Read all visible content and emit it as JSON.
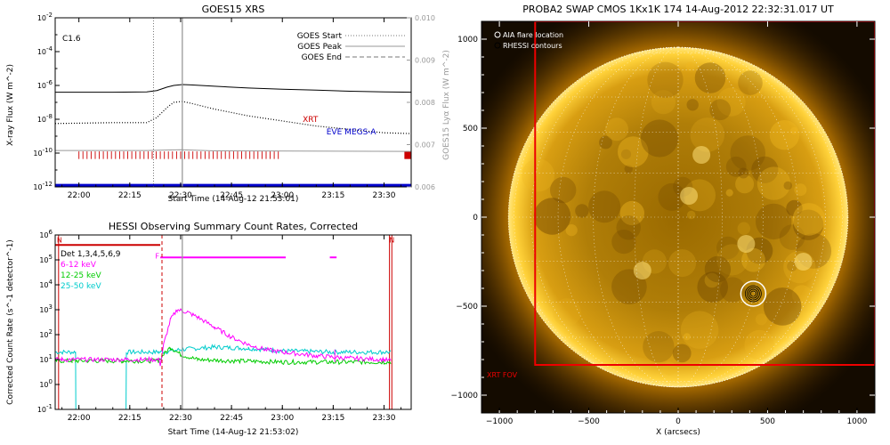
{
  "chart_data": [
    {
      "type": "line",
      "title": "GOES15 XRS",
      "xlabel": "Start Time (14-Aug-12 21:53:01)",
      "ylabel": "X-ray Flux (W m^-2)",
      "ylabel_right": "GOES15 Lyα Flux (W m^-2)",
      "flare_class": "C1.6",
      "x_range_min": [
        -7,
        98
      ],
      "y_range_log": [
        -12,
        -2
      ],
      "y_right_range": [
        0.006,
        0.01
      ],
      "x_ticks": [
        {
          "label": "22:00",
          "min": 0
        },
        {
          "label": "22:15",
          "min": 15
        },
        {
          "label": "22:30",
          "min": 30
        },
        {
          "label": "22:45",
          "min": 45
        },
        {
          "label": "23:00",
          "min": 60
        },
        {
          "label": "23:15",
          "min": 75
        },
        {
          "label": "23:30",
          "min": 90
        }
      ],
      "y_ticks": [
        -2,
        -4,
        -6,
        -8,
        -10,
        -12
      ],
      "y_right_ticks": [
        {
          "label": "0.010",
          "v": 0.01
        },
        {
          "label": "0.009",
          "v": 0.009
        },
        {
          "label": "0.008",
          "v": 0.008
        },
        {
          "label": "0.007",
          "v": 0.007
        },
        {
          "label": "0.006",
          "v": 0.006
        }
      ],
      "legend": [
        {
          "name": "GOES Start",
          "style": "dotted"
        },
        {
          "name": "GOES Peak",
          "style": "solid"
        },
        {
          "name": "GOES End",
          "style": "dashed"
        }
      ],
      "labels": [
        {
          "name": "XRT",
          "color": "#cc0000",
          "x_min": 66,
          "log_y": -8.15
        },
        {
          "name": "EVE MEGS-A",
          "color": "#0000cc",
          "x_min": 73,
          "log_y": -8.9
        }
      ],
      "markers": {
        "goes_start_min": 22,
        "goes_peak_min": 30.5
      },
      "series": [
        {
          "name": "long channel",
          "color": "#000000",
          "style": "solid",
          "x": [
            -7,
            10,
            20,
            23,
            26,
            28,
            30.5,
            33,
            40,
            50,
            60,
            70,
            80,
            90,
            98
          ],
          "log_y": [
            -6.4,
            -6.4,
            -6.38,
            -6.3,
            -6.1,
            -6.0,
            -5.95,
            -5.97,
            -6.05,
            -6.15,
            -6.22,
            -6.28,
            -6.34,
            -6.38,
            -6.4
          ]
        },
        {
          "name": "short channel",
          "color": "#000000",
          "style": "dotted",
          "x": [
            -7,
            10,
            20,
            23,
            26,
            28,
            30.5,
            33,
            40,
            50,
            60,
            70,
            80,
            90,
            98
          ],
          "log_y": [
            -8.25,
            -8.2,
            -8.2,
            -7.9,
            -7.3,
            -7.0,
            -6.95,
            -7.05,
            -7.4,
            -7.8,
            -8.1,
            -8.4,
            -8.6,
            -8.8,
            -8.85
          ]
        },
        {
          "name": "Lyα",
          "color": "#999999",
          "style": "solid",
          "x": [
            -7,
            20,
            30,
            40,
            98
          ],
          "log_y": [
            -9.85,
            -9.85,
            -9.8,
            -9.87,
            -9.9
          ]
        },
        {
          "name": "EVE MEGS-A",
          "color": "#0000cc",
          "style": "thick",
          "x": [
            -7,
            98
          ],
          "log_y": [
            -11.9,
            -11.9
          ]
        }
      ]
    },
    {
      "type": "line",
      "title": "HESSI Observing Summary Count Rates, Corrected",
      "xlabel": "Start Time (14-Aug-12 21:53:02)",
      "ylabel": "Corrected Count Rate (s^-1 detector^-1)",
      "detectors_label": "Det 1,3,4,5,6,9",
      "x_range_min": [
        -7,
        98
      ],
      "y_range_log": [
        -1,
        6
      ],
      "x_ticks": [
        {
          "label": "22:00",
          "min": 0
        },
        {
          "label": "22:15",
          "min": 15
        },
        {
          "label": "22:30",
          "min": 30
        },
        {
          "label": "22:45",
          "min": 45
        },
        {
          "label": "23:00",
          "min": 60
        },
        {
          "label": "23:15",
          "min": 75
        },
        {
          "label": "23:30",
          "min": 90
        }
      ],
      "y_ticks": [
        {
          "label": "10^-1",
          "v": -1
        },
        {
          "label": "10^0",
          "v": 0
        },
        {
          "label": "10^1",
          "v": 1
        },
        {
          "label": "10^2",
          "v": 2
        },
        {
          "label": "10^3",
          "v": 3
        },
        {
          "label": "10^4",
          "v": 4
        },
        {
          "label": "10^5",
          "v": 5
        },
        {
          "label": "10^6",
          "v": 6
        }
      ],
      "flags": [
        {
          "label": "N",
          "color": "#cc0000",
          "x_min": -6.5,
          "log_y": 5.7
        },
        {
          "label": "F",
          "color": "#ff00ff",
          "x_min": 22.5,
          "log_y": 5.05
        },
        {
          "label": "N",
          "color": "#cc0000",
          "x_min": 91.5,
          "log_y": 5.7
        }
      ],
      "flag_bars": [
        {
          "color": "#cc0000",
          "x": [
            -7,
            24
          ],
          "log_y": 5.6
        },
        {
          "color": "#ff00ff",
          "x": [
            24,
            61
          ],
          "log_y": 5.1
        },
        {
          "color": "#ff00ff",
          "x": [
            74,
            76
          ],
          "log_y": 5.1
        }
      ],
      "markers": {
        "goes_start_min": 24.5,
        "goes_peak_min": 30.5
      },
      "legend": [
        {
          "name": "6-12 keV",
          "color": "#ff00ff"
        },
        {
          "name": "12-25 keV",
          "color": "#00cc00"
        },
        {
          "name": "25-50 keV",
          "color": "#00cccc"
        }
      ],
      "series": [
        {
          "name": "6-12 keV",
          "color": "#ff00ff",
          "x": [
            -7,
            -5,
            -2,
            -1,
            13,
            14,
            23.5,
            24,
            25,
            27,
            29,
            32,
            35,
            40,
            45,
            50,
            55,
            60,
            70,
            80,
            90,
            92
          ],
          "log_y": [
            1.0,
            1.0,
            1.0,
            1.0,
            1.0,
            1.0,
            1.0,
            0.8,
            1.6,
            2.6,
            3.0,
            2.9,
            2.7,
            2.3,
            1.9,
            1.6,
            1.4,
            1.3,
            1.15,
            1.05,
            1.0,
            0.95
          ]
        },
        {
          "name": "12-25 keV",
          "color": "#00cc00",
          "x": [
            -7,
            -2,
            -1,
            13,
            14,
            23.5,
            25,
            27,
            30,
            35,
            45,
            60,
            75,
            90,
            92
          ],
          "log_y": [
            0.95,
            0.95,
            0.95,
            0.95,
            0.95,
            0.95,
            1.2,
            1.5,
            1.2,
            1.0,
            0.95,
            0.9,
            0.9,
            0.9,
            0.9
          ]
        },
        {
          "name": "25-50 keV",
          "color": "#00cccc",
          "x": [
            -7,
            -1,
            -0.9,
            13.9,
            14,
            23.5,
            25,
            30,
            40,
            50,
            60,
            75,
            90,
            92
          ],
          "log_y": [
            1.3,
            1.3,
            -1.0,
            -1.0,
            1.3,
            1.3,
            1.3,
            1.4,
            1.5,
            1.45,
            1.35,
            1.3,
            1.3,
            1.3
          ]
        }
      ]
    },
    {
      "type": "heatmap",
      "title": "PROBA2 SWAP CMOS 1Kx1K 174 14-Aug-2012 22:32:31.017 UT",
      "xlabel": "X (arcsecs)",
      "ylabel": "",
      "x_range": [
        -1100,
        1100
      ],
      "y_range": [
        -1100,
        1100
      ],
      "x_ticks": [
        -1000,
        -500,
        0,
        500,
        1000
      ],
      "y_ticks": [
        1000,
        500,
        0,
        -500,
        -1000
      ],
      "solar_radius_arcsec": 950,
      "legend": [
        {
          "name": "AIA flare location",
          "color": "#ffffff"
        },
        {
          "name": "RHESSI contours",
          "color": "#000000"
        }
      ],
      "flare_location": {
        "x": 420,
        "y": -430
      },
      "xrt_fov": {
        "label": "XRT FOV",
        "x": [
          -800,
          1100
        ],
        "y": [
          -830,
          1100
        ]
      }
    }
  ]
}
